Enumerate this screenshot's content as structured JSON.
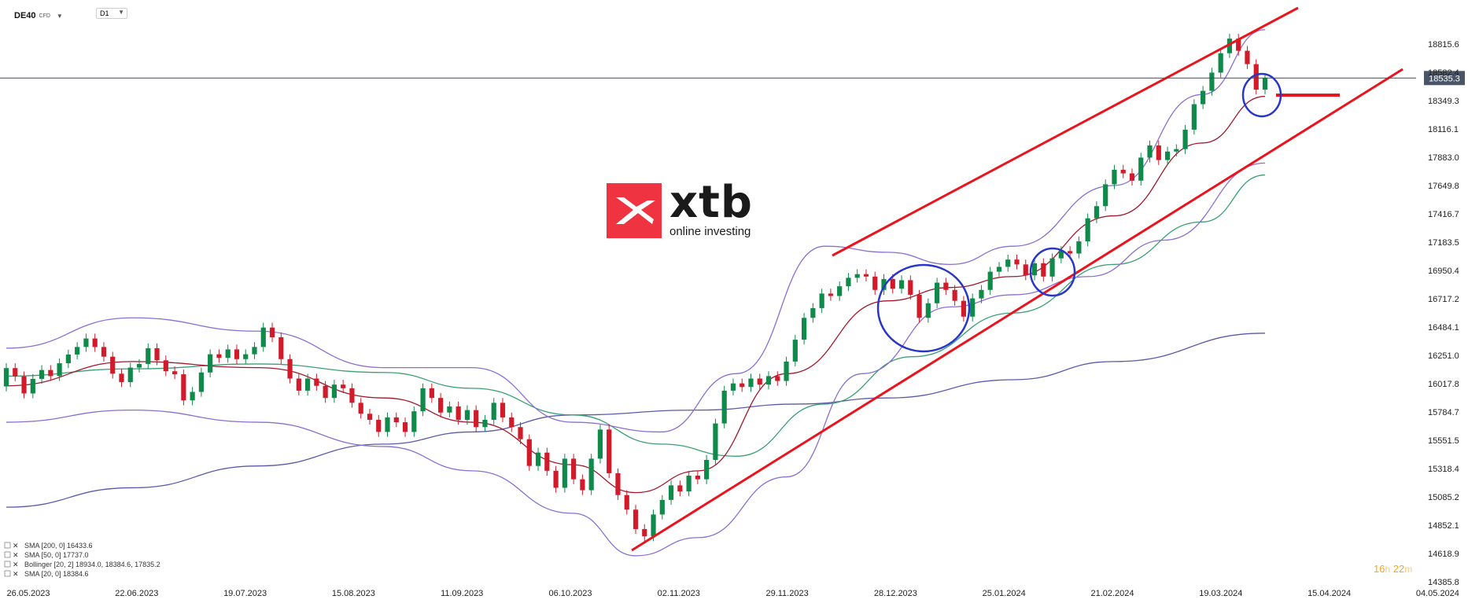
{
  "header": {
    "symbol": "DE40",
    "instrument_type": "CFD",
    "timeframe": "D1"
  },
  "logo": {
    "word": "xtb",
    "tagline": "online investing"
  },
  "timer": {
    "hours": "16",
    "hours_unit": "h",
    "minutes": "22",
    "minutes_unit": "m"
  },
  "legend": [
    {
      "text": "SMA  [200,  0]  16433.6"
    },
    {
      "text": "SMA  [50,  0]  17737.0"
    },
    {
      "text": "Bollinger  [20,  2]  18934.0,   18384.6,   17835.2"
    },
    {
      "text": "SMA  [20,  0]  18384.6"
    }
  ],
  "colors": {
    "up": "#0f8a4a",
    "down": "#d11a2a",
    "sma200": "#5a5aa8",
    "sma50": "#3aa074",
    "sma20": "#a0192c",
    "bollinger": "#8a6fd1",
    "trendline": "#e8141e",
    "circle": "#2a36c8",
    "price_line": "#3c4a5c",
    "price_tag": "#4a5568"
  },
  "chart_data": {
    "type": "candlestick",
    "title": "",
    "xlabel": "",
    "ylabel": "",
    "ylim": [
      14385.8,
      19050.0
    ],
    "y_ticks": [
      "18815.6",
      "18582.4",
      "18349.3",
      "18116.1",
      "17883.0",
      "17649.8",
      "17416.7",
      "17183.5",
      "16950.4",
      "16717.2",
      "16484.1",
      "16251.0",
      "16017.8",
      "15784.7",
      "15551.5",
      "15318.4",
      "15085.2",
      "14852.1",
      "14618.9",
      "14385.8"
    ],
    "x_ticks": [
      "26.05.2023",
      "22.06.2023",
      "19.07.2023",
      "15.08.2023",
      "11.09.2023",
      "06.10.2023",
      "02.11.2023",
      "29.11.2023",
      "28.12.2023",
      "25.01.2024",
      "21.02.2024",
      "19.03.2024",
      "15.04.2024",
      "04.05.2024"
    ],
    "current_price": "18535.3",
    "candles": [
      [
        15995,
        16146
      ],
      [
        16146,
        16078
      ],
      [
        16078,
        15937
      ],
      [
        15937,
        16057
      ],
      [
        16057,
        16130
      ],
      [
        16130,
        16080
      ],
      [
        16080,
        16186
      ],
      [
        16186,
        16258
      ],
      [
        16258,
        16320
      ],
      [
        16320,
        16390
      ],
      [
        16390,
        16320
      ],
      [
        16320,
        16240
      ],
      [
        16240,
        16100
      ],
      [
        16100,
        16030
      ],
      [
        16030,
        16150
      ],
      [
        16150,
        16180
      ],
      [
        16180,
        16310
      ],
      [
        16310,
        16210
      ],
      [
        16210,
        16120
      ],
      [
        16120,
        16095
      ],
      [
        16095,
        15880
      ],
      [
        15880,
        15950
      ],
      [
        15950,
        16110
      ],
      [
        16110,
        16260
      ],
      [
        16260,
        16230
      ],
      [
        16230,
        16300
      ],
      [
        16300,
        16220
      ],
      [
        16220,
        16260
      ],
      [
        16260,
        16320
      ],
      [
        16320,
        16480
      ],
      [
        16480,
        16400
      ],
      [
        16400,
        16220
      ],
      [
        16220,
        16060
      ],
      [
        16060,
        15960
      ],
      [
        15960,
        16060
      ],
      [
        16060,
        16000
      ],
      [
        16000,
        15900
      ],
      [
        15900,
        16010
      ],
      [
        16010,
        15980
      ],
      [
        15980,
        15860
      ],
      [
        15860,
        15770
      ],
      [
        15770,
        15720
      ],
      [
        15720,
        15620
      ],
      [
        15620,
        15740
      ],
      [
        15740,
        15700
      ],
      [
        15700,
        15620
      ],
      [
        15620,
        15790
      ],
      [
        15790,
        15980
      ],
      [
        15980,
        15900
      ],
      [
        15900,
        15780
      ],
      [
        15780,
        15830
      ],
      [
        15830,
        15720
      ],
      [
        15720,
        15800
      ],
      [
        15800,
        15660
      ],
      [
        15660,
        15720
      ],
      [
        15720,
        15860
      ],
      [
        15860,
        15740
      ],
      [
        15740,
        15660
      ],
      [
        15660,
        15560
      ],
      [
        15560,
        15340
      ],
      [
        15340,
        15450
      ],
      [
        15450,
        15300
      ],
      [
        15300,
        15160
      ],
      [
        15160,
        15400
      ],
      [
        15400,
        15230
      ],
      [
        15230,
        15140
      ],
      [
        15140,
        15400
      ],
      [
        15400,
        15640
      ],
      [
        15640,
        15280
      ],
      [
        15280,
        15100
      ],
      [
        15100,
        14980
      ],
      [
        14980,
        14820
      ],
      [
        14820,
        14760
      ],
      [
        14760,
        14940
      ],
      [
        14940,
        15060
      ],
      [
        15060,
        15180
      ],
      [
        15180,
        15130
      ],
      [
        15130,
        15260
      ],
      [
        15260,
        15230
      ],
      [
        15230,
        15390
      ],
      [
        15390,
        15690
      ],
      [
        15690,
        15960
      ],
      [
        15960,
        16020
      ],
      [
        16020,
        15990
      ],
      [
        15990,
        16060
      ],
      [
        16060,
        16010
      ],
      [
        16010,
        16080
      ],
      [
        16080,
        16040
      ],
      [
        16040,
        16200
      ],
      [
        16200,
        16380
      ],
      [
        16380,
        16560
      ],
      [
        16560,
        16640
      ],
      [
        16640,
        16760
      ],
      [
        16760,
        16740
      ],
      [
        16740,
        16820
      ],
      [
        16820,
        16890
      ],
      [
        16890,
        16920
      ],
      [
        16920,
        16900
      ],
      [
        16900,
        16790
      ],
      [
        16790,
        16880
      ],
      [
        16880,
        16800
      ],
      [
        16800,
        16870
      ],
      [
        16870,
        16750
      ],
      [
        16750,
        16560
      ],
      [
        16560,
        16680
      ],
      [
        16680,
        16850
      ],
      [
        16850,
        16790
      ],
      [
        16790,
        16700
      ],
      [
        16700,
        16570
      ],
      [
        16570,
        16720
      ],
      [
        16720,
        16790
      ],
      [
        16790,
        16940
      ],
      [
        16940,
        16980
      ],
      [
        16980,
        17040
      ],
      [
        17040,
        17000
      ],
      [
        17000,
        16910
      ],
      [
        16910,
        17010
      ],
      [
        17010,
        16900
      ],
      [
        16900,
        17050
      ],
      [
        17050,
        17110
      ],
      [
        17110,
        17090
      ],
      [
        17090,
        17190
      ],
      [
        17190,
        17380
      ],
      [
        17380,
        17480
      ],
      [
        17480,
        17660
      ],
      [
        17660,
        17780
      ],
      [
        17780,
        17750
      ],
      [
        17750,
        17690
      ],
      [
        17690,
        17880
      ],
      [
        17880,
        17980
      ],
      [
        17980,
        17860
      ],
      [
        17860,
        17930
      ],
      [
        17930,
        17950
      ],
      [
        17950,
        18110
      ],
      [
        18110,
        18320
      ],
      [
        18320,
        18430
      ],
      [
        18430,
        18580
      ],
      [
        18580,
        18740
      ],
      [
        18740,
        18860
      ],
      [
        18860,
        18760
      ],
      [
        18760,
        18650
      ],
      [
        18650,
        18440
      ],
      [
        18440,
        18535
      ]
    ],
    "series": [
      {
        "name": "SMA  [200,  0]",
        "values": [
          [
            0.0,
            15000
          ],
          [
            0.1,
            15160
          ],
          [
            0.2,
            15340
          ],
          [
            0.3,
            15520
          ],
          [
            0.37,
            15620
          ],
          [
            0.45,
            15760
          ],
          [
            0.55,
            15800
          ],
          [
            0.63,
            15850
          ],
          [
            0.7,
            15900
          ],
          [
            0.8,
            16050
          ],
          [
            0.88,
            16200
          ],
          [
            1.0,
            16433.6
          ]
        ]
      },
      {
        "name": "SMA  [50,  0]",
        "values": [
          [
            0.0,
            16080
          ],
          [
            0.1,
            16140
          ],
          [
            0.2,
            16180
          ],
          [
            0.3,
            16110
          ],
          [
            0.37,
            15980
          ],
          [
            0.45,
            15760
          ],
          [
            0.52,
            15520
          ],
          [
            0.58,
            15420
          ],
          [
            0.65,
            15850
          ],
          [
            0.72,
            16240
          ],
          [
            0.8,
            16600
          ],
          [
            0.88,
            17000
          ],
          [
            0.95,
            17350
          ],
          [
            1.0,
            17737.0
          ]
        ]
      },
      {
        "name": "SMA  [20,  0]",
        "values": [
          [
            0.0,
            16000
          ],
          [
            0.1,
            16200
          ],
          [
            0.2,
            16150
          ],
          [
            0.3,
            15900
          ],
          [
            0.37,
            15700
          ],
          [
            0.45,
            15350
          ],
          [
            0.5,
            15120
          ],
          [
            0.55,
            15300
          ],
          [
            0.62,
            16100
          ],
          [
            0.7,
            16700
          ],
          [
            0.75,
            16810
          ],
          [
            0.8,
            16900
          ],
          [
            0.88,
            17400
          ],
          [
            0.95,
            18000
          ],
          [
            1.0,
            18384.6
          ]
        ]
      },
      {
        "name": "Bollinger  [20,  2]",
        "values": [
          [
            0.0,
            16310
          ],
          [
            0.1,
            16560
          ],
          [
            0.2,
            16450
          ],
          [
            0.3,
            16150
          ],
          [
            0.37,
            16150
          ],
          [
            0.45,
            15700
          ],
          [
            0.52,
            15620
          ],
          [
            0.58,
            16100
          ],
          [
            0.65,
            17150
          ],
          [
            0.7,
            17100
          ],
          [
            0.75,
            17000
          ],
          [
            0.8,
            17150
          ],
          [
            0.88,
            17650
          ],
          [
            0.95,
            18400
          ],
          [
            1.0,
            18934.0
          ]
        ]
      },
      {
        "name": "Bollinger lower",
        "values": [
          [
            0.0,
            15700
          ],
          [
            0.1,
            15800
          ],
          [
            0.2,
            15700
          ],
          [
            0.3,
            15500
          ],
          [
            0.37,
            15300
          ],
          [
            0.45,
            14950
          ],
          [
            0.5,
            14600
          ],
          [
            0.55,
            14750
          ],
          [
            0.62,
            15250
          ],
          [
            0.68,
            16100
          ],
          [
            0.75,
            16650
          ],
          [
            0.8,
            16750
          ],
          [
            0.86,
            16900
          ],
          [
            0.92,
            17200
          ],
          [
            1.0,
            17835.2
          ]
        ]
      }
    ]
  }
}
